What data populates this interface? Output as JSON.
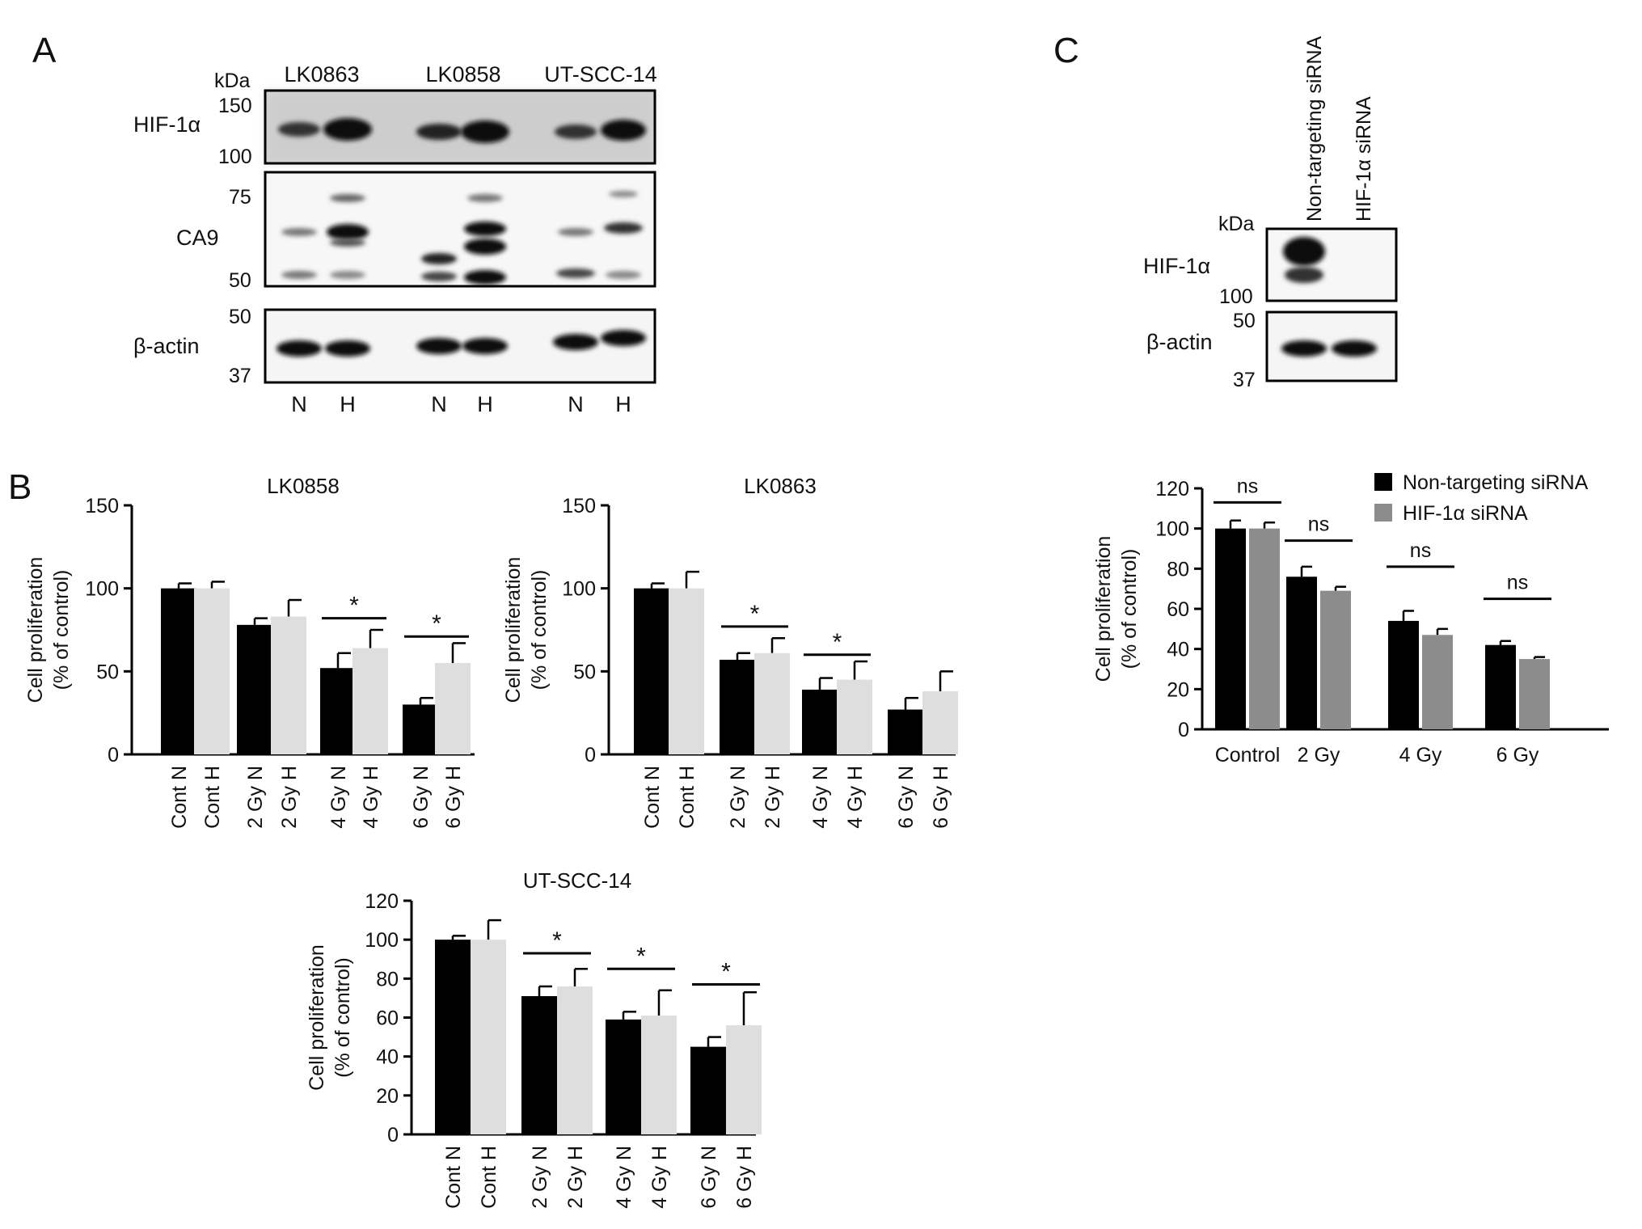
{
  "panel_letters": {
    "a": "A",
    "b": "B",
    "c": "C"
  },
  "blot_a": {
    "kda_label": "kDa",
    "cell_lines": [
      "LK0863",
      "LK0858",
      "UT-SCC-14"
    ],
    "rows": [
      {
        "label": "HIF-1α",
        "markers": [
          "150",
          "100"
        ]
      },
      {
        "label": "CA9",
        "markers": [
          "75",
          "50"
        ]
      },
      {
        "label": "β-actin",
        "markers": [
          "50",
          "37"
        ]
      }
    ],
    "lanes": [
      "N",
      "H",
      "N",
      "H",
      "N",
      "H"
    ]
  },
  "blot_c": {
    "kda_label": "kDa",
    "lanes": [
      "Non-targeting siRNA",
      "HIF-1α siRNA"
    ],
    "rows": [
      {
        "label": "HIF-1α",
        "markers": [
          "100"
        ]
      },
      {
        "label": "β-actin",
        "markers": [
          "50",
          "37"
        ]
      }
    ]
  },
  "colors": {
    "normoxia": "#000000",
    "hypoxia": "#dedede",
    "non_targeting": "#000000",
    "hif_sirna": "#8c8c8c"
  },
  "chart_data": [
    {
      "type": "bar",
      "title": "LK0858",
      "ylabel": "Cell proliferation\n(% of control)",
      "ylim": [
        0,
        150
      ],
      "yticks": [
        "0",
        "50",
        "100",
        "150"
      ],
      "categories": [
        "Cont N",
        "Cont H",
        "2 Gy N",
        "2 Gy H",
        "4 Gy N",
        "4 Gy H",
        "6 Gy N",
        "6 Gy H"
      ],
      "values": [
        100,
        100,
        78,
        83,
        52,
        64,
        30,
        55
      ],
      "errors": [
        3,
        4,
        4,
        10,
        9,
        11,
        4,
        12
      ],
      "bar_colors": [
        "normoxia",
        "hypoxia",
        "normoxia",
        "hypoxia",
        "normoxia",
        "hypoxia",
        "normoxia",
        "hypoxia"
      ],
      "significance": [
        {
          "from": 4,
          "to": 5,
          "label": "*",
          "y": 82
        },
        {
          "from": 6,
          "to": 7,
          "label": "*",
          "y": 71
        }
      ]
    },
    {
      "type": "bar",
      "title": "LK0863",
      "ylabel": "Cell proliferation\n(% of control)",
      "ylim": [
        0,
        150
      ],
      "yticks": [
        "0",
        "50",
        "100",
        "150"
      ],
      "categories": [
        "Cont N",
        "Cont H",
        "2 Gy N",
        "2 Gy H",
        "4 Gy N",
        "4 Gy H",
        "6 Gy N",
        "6 Gy H"
      ],
      "values": [
        100,
        100,
        57,
        61,
        39,
        45,
        27,
        38
      ],
      "errors": [
        3,
        10,
        4,
        9,
        7,
        11,
        7,
        12
      ],
      "bar_colors": [
        "normoxia",
        "hypoxia",
        "normoxia",
        "hypoxia",
        "normoxia",
        "hypoxia",
        "normoxia",
        "hypoxia"
      ],
      "significance": [
        {
          "from": 2,
          "to": 3,
          "label": "*",
          "y": 77
        },
        {
          "from": 4,
          "to": 5,
          "label": "*",
          "y": 60
        }
      ]
    },
    {
      "type": "bar",
      "title": "UT-SCC-14",
      "ylabel": "Cell proliferation\n(% of control)",
      "ylim": [
        0,
        120
      ],
      "yticks": [
        "0",
        "20",
        "40",
        "60",
        "80",
        "100",
        "120"
      ],
      "categories": [
        "Cont N",
        "Cont H",
        "2 Gy N",
        "2 Gy H",
        "4 Gy N",
        "4 Gy H",
        "6 Gy N",
        "6 Gy H"
      ],
      "values": [
        100,
        100,
        71,
        76,
        59,
        61,
        45,
        56
      ],
      "errors": [
        2,
        10,
        5,
        9,
        4,
        13,
        5,
        17
      ],
      "bar_colors": [
        "normoxia",
        "hypoxia",
        "normoxia",
        "hypoxia",
        "normoxia",
        "hypoxia",
        "normoxia",
        "hypoxia"
      ],
      "significance": [
        {
          "from": 2,
          "to": 3,
          "label": "*",
          "y": 93
        },
        {
          "from": 4,
          "to": 5,
          "label": "*",
          "y": 85
        },
        {
          "from": 6,
          "to": 7,
          "label": "*",
          "y": 77
        }
      ]
    },
    {
      "type": "bar",
      "title": "",
      "ylabel": "Cell proliferation\n(% of control)",
      "ylim": [
        0,
        120
      ],
      "yticks": [
        "0",
        "20",
        "40",
        "60",
        "80",
        "100",
        "120"
      ],
      "categories": [
        "Control",
        "2 Gy",
        "4 Gy",
        "6 Gy"
      ],
      "series": [
        {
          "name": "Non-targeting siRNA",
          "color": "non_targeting",
          "values": [
            100,
            76,
            54,
            42
          ],
          "errors": [
            4,
            5,
            5,
            2
          ]
        },
        {
          "name": "HIF-1α siRNA",
          "color": "hif_sirna",
          "values": [
            100,
            69,
            47,
            35
          ],
          "errors": [
            3,
            2,
            3,
            1
          ]
        }
      ],
      "legend": "top-right",
      "significance": [
        {
          "group": 0,
          "label": "ns",
          "y": 113
        },
        {
          "group": 1,
          "label": "ns",
          "y": 94
        },
        {
          "group": 2,
          "label": "ns",
          "y": 81
        },
        {
          "group": 3,
          "label": "ns",
          "y": 65
        }
      ]
    }
  ]
}
